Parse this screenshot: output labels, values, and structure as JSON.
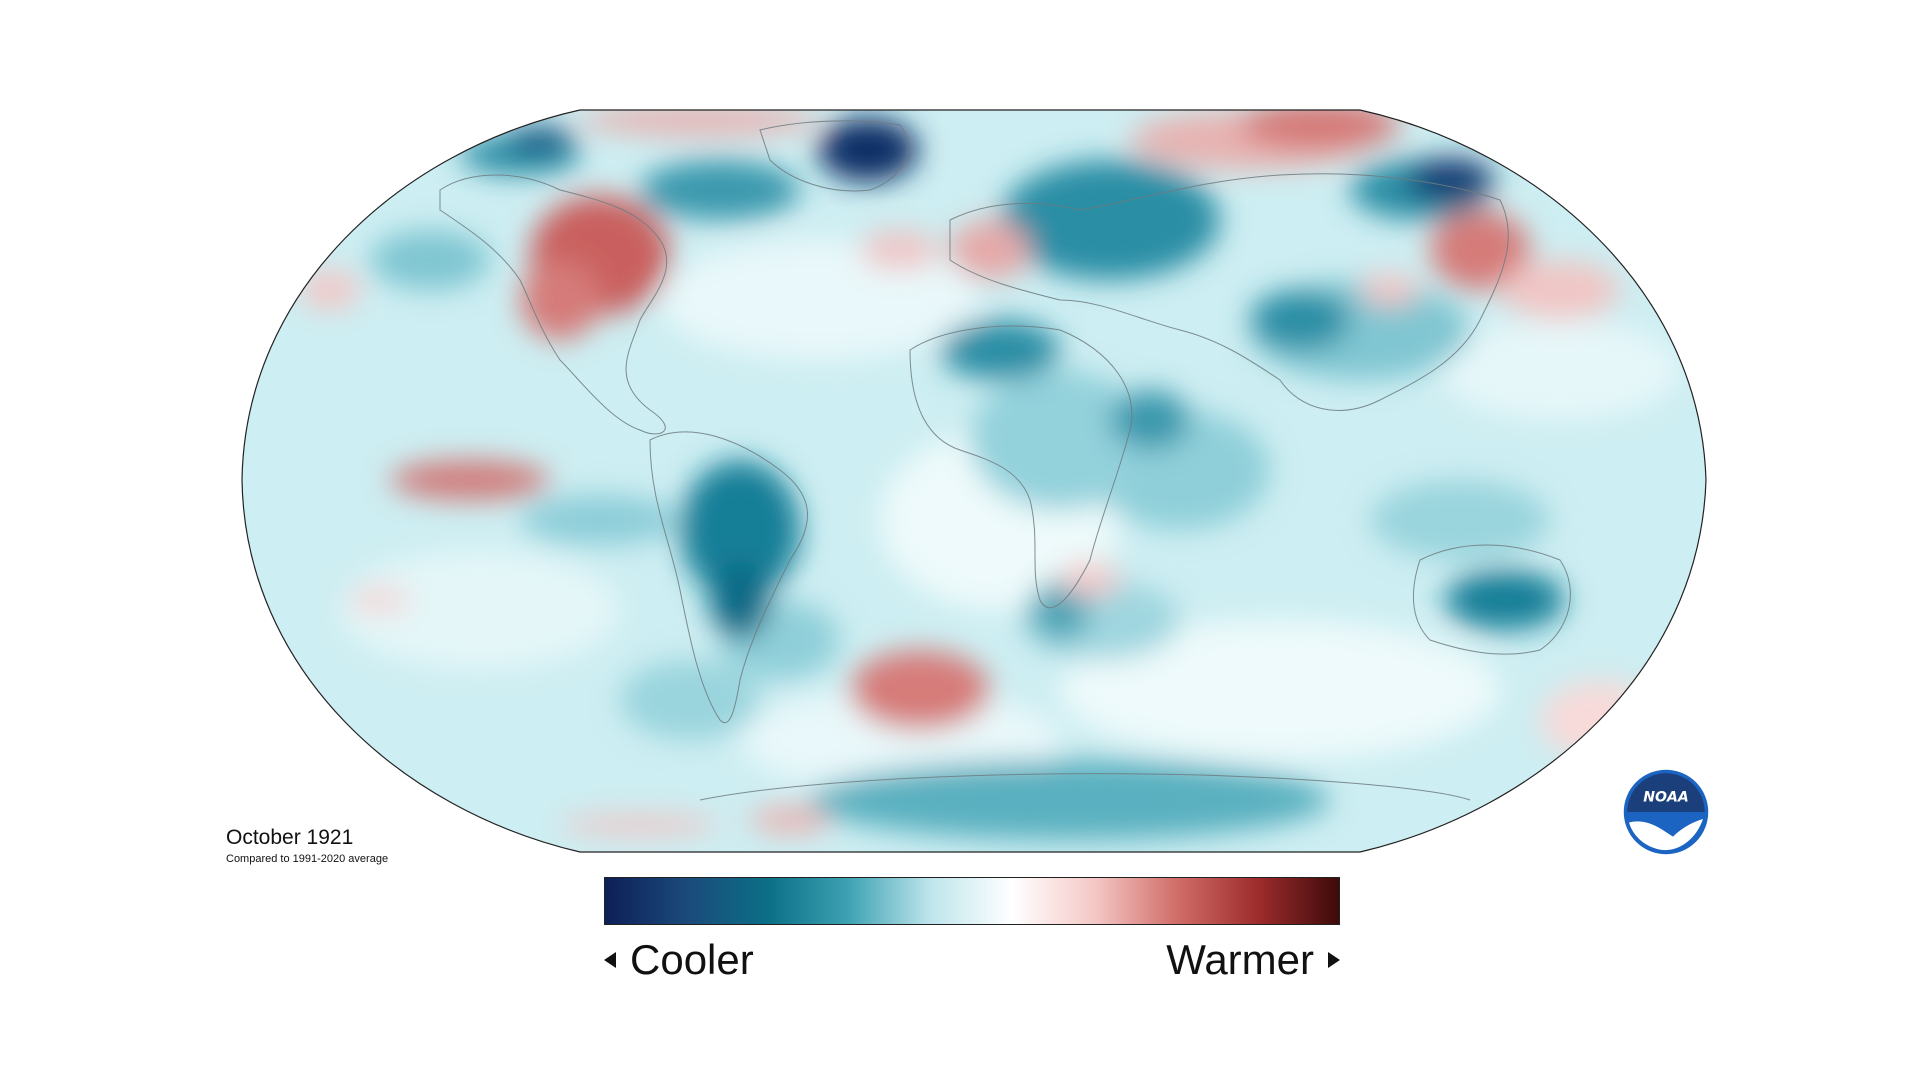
{
  "caption": {
    "title": "October 1921",
    "subtitle": "Compared to 1991-2020 average"
  },
  "legend": {
    "left_label": "Cooler",
    "right_label": "Warmer",
    "gradient_stops": [
      "#0d1f57",
      "#1b4a7a",
      "#0b6f87",
      "#3fa3b4",
      "#bfe6ec",
      "#ffffff",
      "#f4c8c6",
      "#d16e6a",
      "#9e2c2c",
      "#3e0a0a"
    ]
  },
  "map": {
    "projection": "Robinson",
    "colors": {
      "cool_light": "#cdeef2",
      "cool_mid": "#6fc0cd",
      "cool_strong": "#177f98",
      "cool_deep": "#0f2f66",
      "warm_light": "#f5cfd0",
      "warm_mid": "#e29a98",
      "warm_strong": "#c0504f"
    }
  },
  "logo": {
    "text": "NOAA",
    "color": "#1c64c1"
  }
}
